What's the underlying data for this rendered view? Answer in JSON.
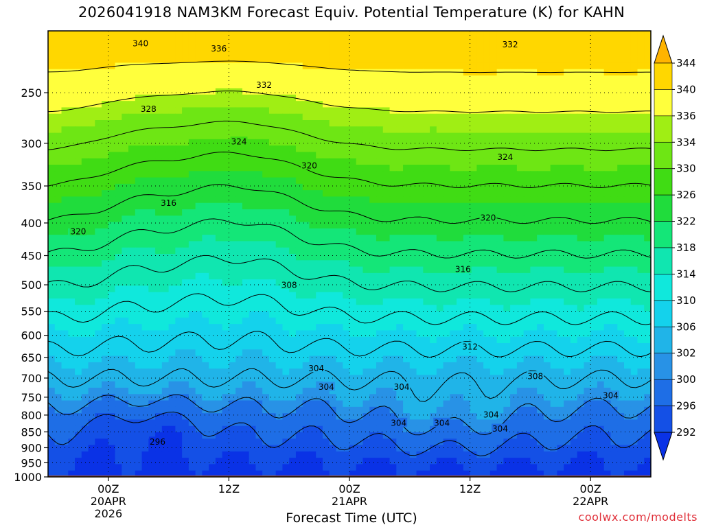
{
  "title": "2026041918 NAM3KM Forecast Equiv. Potential Temperature (K) for KAHN",
  "credit": "coolwx.com/modelts",
  "chart_data": {
    "type": "heatmap",
    "title": "2026041918 NAM3KM Forecast Equiv. Potential Temperature (K) for KAHN",
    "xlabel": "Forecast Time (UTC)",
    "ylabel": "",
    "y_scale": "log-pressure",
    "y_range_hPa": [
      1000,
      200
    ],
    "y_ticks": [
      250,
      300,
      350,
      400,
      450,
      500,
      550,
      600,
      650,
      700,
      750,
      800,
      850,
      900,
      950,
      1000
    ],
    "x_ticks": [
      {
        "hour": 6,
        "lines": [
          "00Z",
          "20APR",
          "2026"
        ]
      },
      {
        "hour": 18,
        "lines": [
          "12Z"
        ]
      },
      {
        "hour": 30,
        "lines": [
          "00Z",
          "21APR"
        ]
      },
      {
        "hour": 42,
        "lines": [
          "12Z"
        ]
      },
      {
        "hour": 54,
        "lines": [
          "00Z",
          "22APR"
        ]
      }
    ],
    "x_range_hours": [
      0,
      60
    ],
    "colorbar": {
      "levels": [
        292,
        296,
        300,
        302,
        306,
        310,
        314,
        318,
        322,
        326,
        330,
        334,
        336,
        340,
        344
      ],
      "colors": [
        "#0a32e6",
        "#1450e6",
        "#1e6ee6",
        "#2892e6",
        "#20b4e8",
        "#14d2ec",
        "#10e8dc",
        "#10e6b0",
        "#14e678",
        "#20dc3c",
        "#40dc14",
        "#6ee614",
        "#a0ee14",
        "#ffff3c",
        "#ffd700",
        "#ffb400"
      ]
    },
    "ground_color": "#a0522d",
    "contour_labels": [
      {
        "t": 9.2,
        "p": 209,
        "v": "340"
      },
      {
        "t": 17.0,
        "p": 213,
        "v": "336"
      },
      {
        "t": 46.0,
        "p": 210,
        "v": "332"
      },
      {
        "t": 21.5,
        "p": 243,
        "v": "332"
      },
      {
        "t": 10.0,
        "p": 265,
        "v": "328"
      },
      {
        "t": 19.0,
        "p": 298,
        "v": "324"
      },
      {
        "t": 45.5,
        "p": 315,
        "v": "324"
      },
      {
        "t": 26.0,
        "p": 325,
        "v": "320"
      },
      {
        "t": 12.0,
        "p": 372,
        "v": "316"
      },
      {
        "t": 43.8,
        "p": 392,
        "v": "320"
      },
      {
        "t": 3.0,
        "p": 412,
        "v": "320"
      },
      {
        "t": 41.3,
        "p": 472,
        "v": "316"
      },
      {
        "t": 24.0,
        "p": 500,
        "v": "308"
      },
      {
        "t": 42.0,
        "p": 625,
        "v": "312"
      },
      {
        "t": 26.7,
        "p": 675,
        "v": "304"
      },
      {
        "t": 48.5,
        "p": 695,
        "v": "308"
      },
      {
        "t": 27.7,
        "p": 722,
        "v": "304"
      },
      {
        "t": 35.2,
        "p": 722,
        "v": "304"
      },
      {
        "t": 56.0,
        "p": 745,
        "v": "304"
      },
      {
        "t": 44.1,
        "p": 798,
        "v": "304"
      },
      {
        "t": 34.9,
        "p": 822,
        "v": "304"
      },
      {
        "t": 39.2,
        "p": 822,
        "v": "304"
      },
      {
        "t": 45.0,
        "p": 840,
        "v": "304"
      },
      {
        "t": 10.9,
        "p": 880,
        "v": "296"
      }
    ]
  }
}
